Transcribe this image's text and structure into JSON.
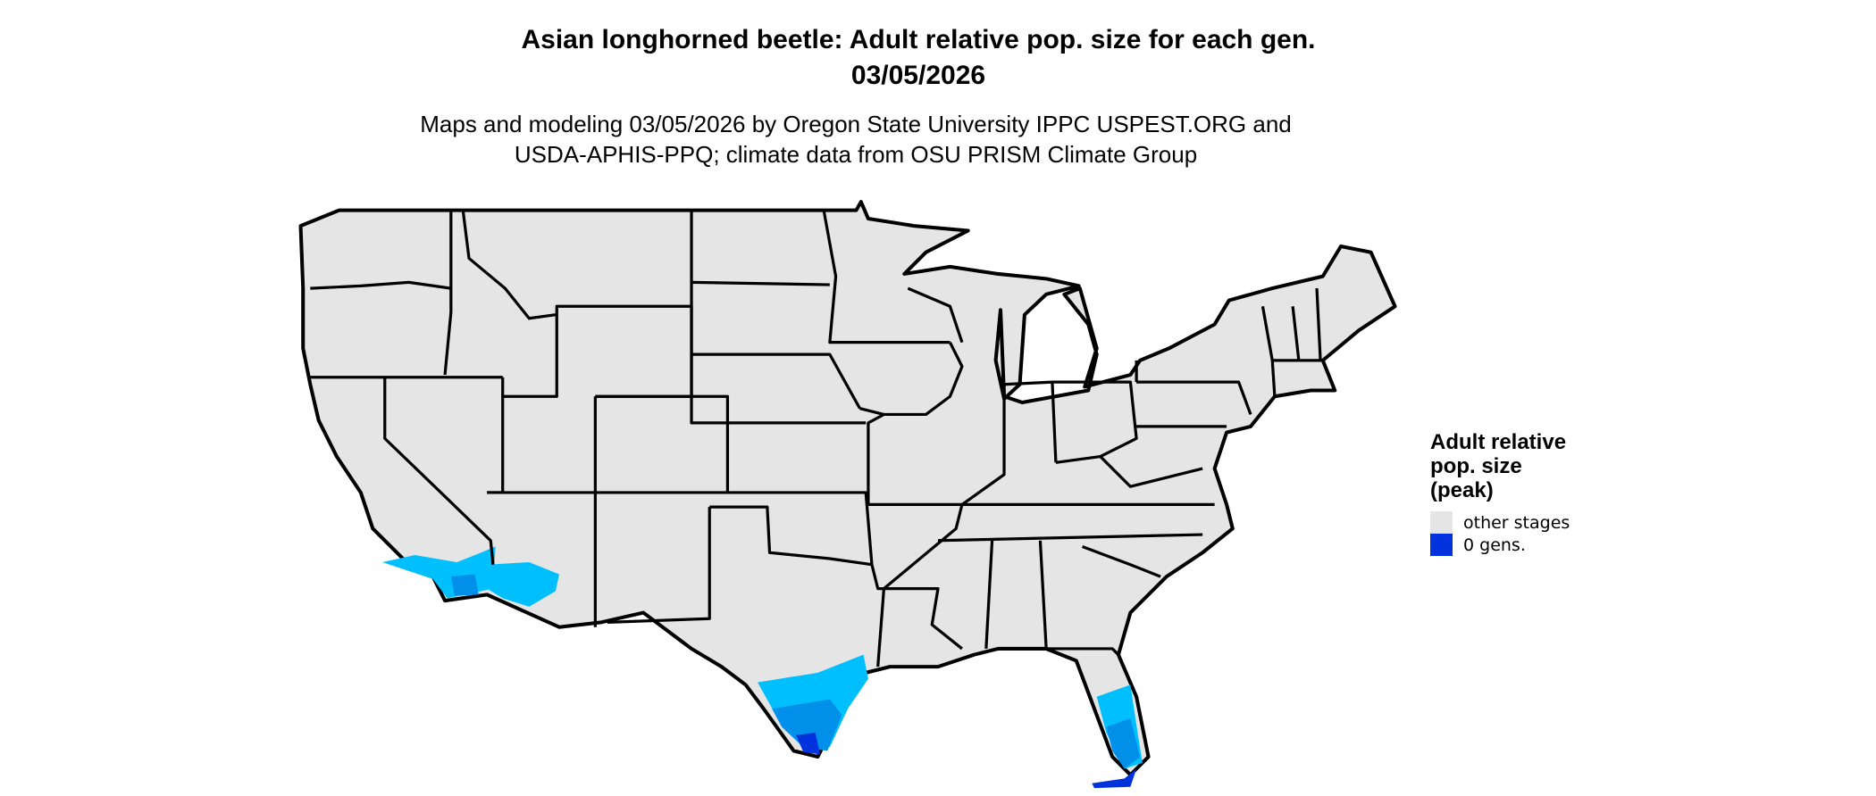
{
  "title": {
    "line1": "Asian longhorned beetle: Adult relative pop. size for each gen.",
    "line2": "03/05/2026"
  },
  "subtitle": {
    "line1": "Maps and modeling 03/05/2026 by Oregon State University IPPC USPEST.ORG and",
    "line2": "USDA-APHIS-PPQ; climate data from OSU PRISM Climate Group"
  },
  "legend": {
    "title_lines": [
      "Adult relative",
      "pop. size",
      "(peak)"
    ],
    "items": [
      {
        "label": "other stages",
        "color": "#e5e5e5"
      },
      {
        "label": "0 gens.",
        "color": "#0033dd"
      }
    ]
  },
  "colors": {
    "land": "#e5e5e5",
    "border": "#000000",
    "light_blue": "#00bfff",
    "mid_blue": "#0090ea",
    "dark_blue": "#0033dd"
  },
  "region": "Contiguous United States"
}
